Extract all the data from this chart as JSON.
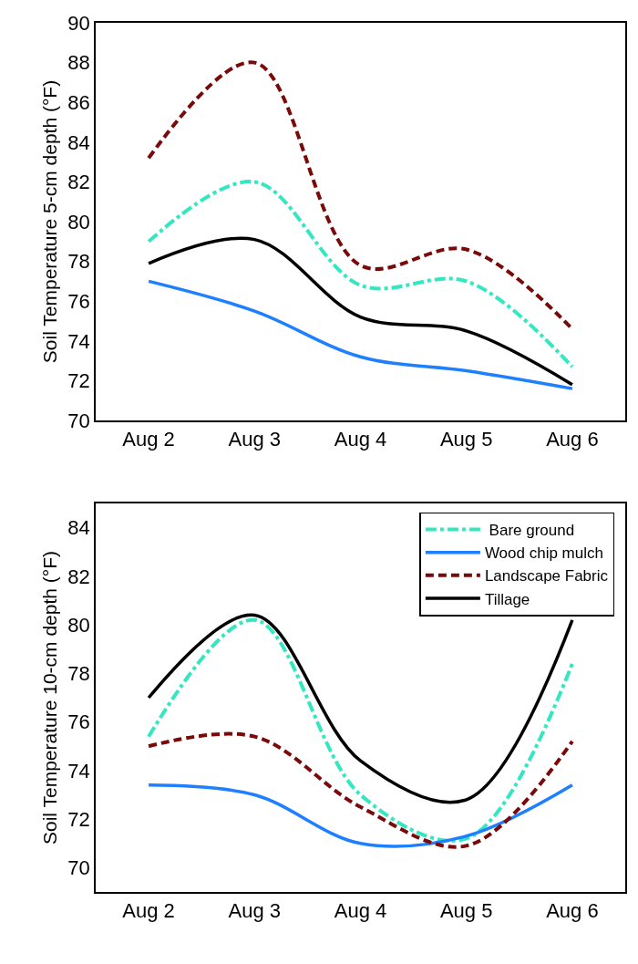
{
  "chart_data": [
    {
      "type": "line",
      "ylabel": "Soil Temperature 5-cm depth (°F)",
      "categories": [
        "Aug 2",
        "Aug 3",
        "Aug 4",
        "Aug 5",
        "Aug 6"
      ],
      "ylim": [
        70,
        90
      ],
      "yticks": [
        70,
        72,
        74,
        76,
        78,
        80,
        82,
        84,
        86,
        88,
        90
      ],
      "legend": false,
      "marker": "none",
      "series": [
        {
          "color": "#33e8c0",
          "line_style": "dashdot",
          "values": [
            79.0,
            82.0,
            76.8,
            77.0,
            72.7
          ]
        },
        {
          "color": "#1e7fff",
          "line_style": "solid",
          "values": [
            77.0,
            75.5,
            73.2,
            72.5,
            71.6
          ]
        },
        {
          "color": "#7a0a0a",
          "line_style": "dashed",
          "values": [
            83.2,
            88.0,
            77.8,
            78.6,
            74.6
          ]
        },
        {
          "color": "#000000",
          "line_style": "solid",
          "values": [
            77.9,
            79.1,
            75.2,
            74.5,
            71.8
          ]
        }
      ]
    },
    {
      "type": "line",
      "ylabel": "Soil Temperature 10-cm depth (°F)",
      "categories": [
        "Aug 2",
        "Aug 3",
        "Aug 4",
        "Aug 5",
        "Aug 6"
      ],
      "ylim": [
        69,
        85
      ],
      "yticks": [
        70,
        72,
        74,
        76,
        78,
        80,
        82,
        84
      ],
      "legend": "top right",
      "marker": "none",
      "series": [
        {
          "name": " Bare ground",
          "color": "#33e8c0",
          "line_style": "dashdot",
          "values": [
            75.4,
            80.2,
            73.0,
            71.2,
            78.4
          ]
        },
        {
          "name": "Wood chip mulch",
          "color": "#1e7fff",
          "line_style": "solid",
          "values": [
            73.4,
            73.0,
            71.0,
            71.3,
            73.4
          ]
        },
        {
          "name": "Landscape Fabric",
          "color": "#7a0a0a",
          "line_style": "dashed",
          "values": [
            75.0,
            75.4,
            72.5,
            70.9,
            75.2
          ]
        },
        {
          "name": "Tillage",
          "color": "#000000",
          "line_style": "solid",
          "values": [
            77.0,
            80.4,
            74.4,
            72.8,
            80.2
          ]
        }
      ]
    }
  ]
}
